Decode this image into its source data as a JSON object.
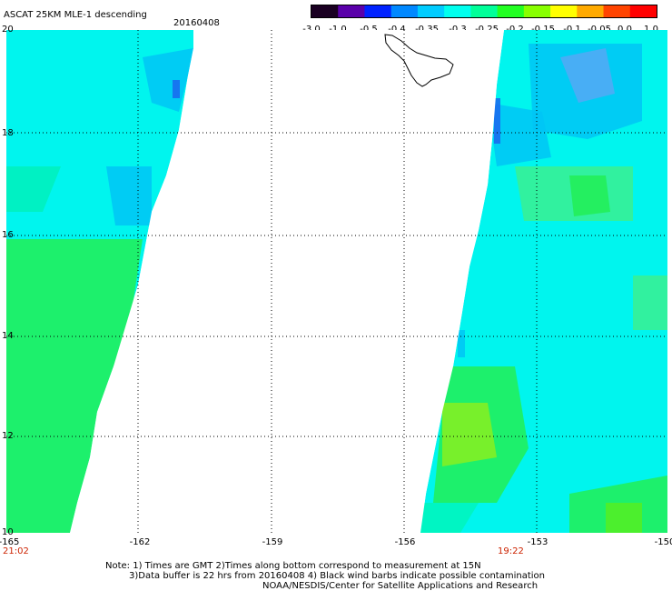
{
  "header": {
    "title": "ASCAT 25KM MLE-1 descending",
    "date": "20160408"
  },
  "colorbar": {
    "labels": [
      "-3.0",
      "-1.0",
      "-0.5",
      "-0.4",
      "-0.35",
      "-0.3",
      "-0.25",
      "-0.2",
      "-0.15",
      "-0.1",
      "-0.05",
      "0.0",
      "1.0"
    ],
    "colors": [
      "#1a0022",
      "#5a00aa",
      "#0022ff",
      "#0088ff",
      "#00ccff",
      "#00ffee",
      "#00ff99",
      "#22ff22",
      "#88ff00",
      "#ffff00",
      "#ffaa00",
      "#ff4400",
      "#ff0000"
    ]
  },
  "map": {
    "lat_labels": [
      "20",
      "18",
      "16",
      "14",
      "12",
      "10"
    ],
    "lon_labels": [
      "-165",
      "-162",
      "-159",
      "-156",
      "-153",
      "-150"
    ],
    "time_labels": {
      "left": "21:02",
      "right": "19:22"
    },
    "swath_colors": {
      "base": "#00f5ee",
      "green": "#22ee55",
      "lightgreen": "#88f020",
      "blue": "#00c4f5",
      "darkblue": "#1a66ee"
    },
    "land_color": "#ffffff"
  },
  "notes": [
    "Note: 1) Times are GMT 2)Times along bottom correspond to measurement at 15N",
    "3)Data buffer is 22 hrs from 20160408 4) Black wind barbs indicate possible contamination",
    "NOAA/NESDIS/Center for Satellite Applications and Research"
  ]
}
